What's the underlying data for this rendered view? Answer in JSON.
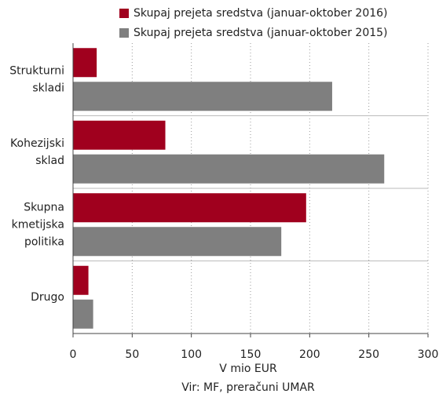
{
  "chart_data": {
    "type": "hbar",
    "categories": [
      [
        "Strukturni",
        "skladi"
      ],
      [
        "Kohezijski",
        "sklad"
      ],
      [
        "Skupna",
        "kmetijska",
        "politika"
      ],
      [
        "Drugo"
      ]
    ],
    "series": [
      {
        "name": "Skupaj prejeta sredstva (januar-oktober 2016)",
        "color": "#a0001e",
        "values": [
          20,
          78,
          197,
          13
        ]
      },
      {
        "name": "Skupaj prejeta sredstva (januar-oktober 2015)",
        "color": "#7f7f7f",
        "values": [
          219,
          263,
          176,
          17
        ]
      }
    ],
    "xlim": [
      0,
      300
    ],
    "xticks": [
      0,
      50,
      100,
      150,
      200,
      250,
      300
    ],
    "grid": true,
    "xlabel": "V mio EUR",
    "source": "Vir: MF, preračuni UMAR"
  }
}
